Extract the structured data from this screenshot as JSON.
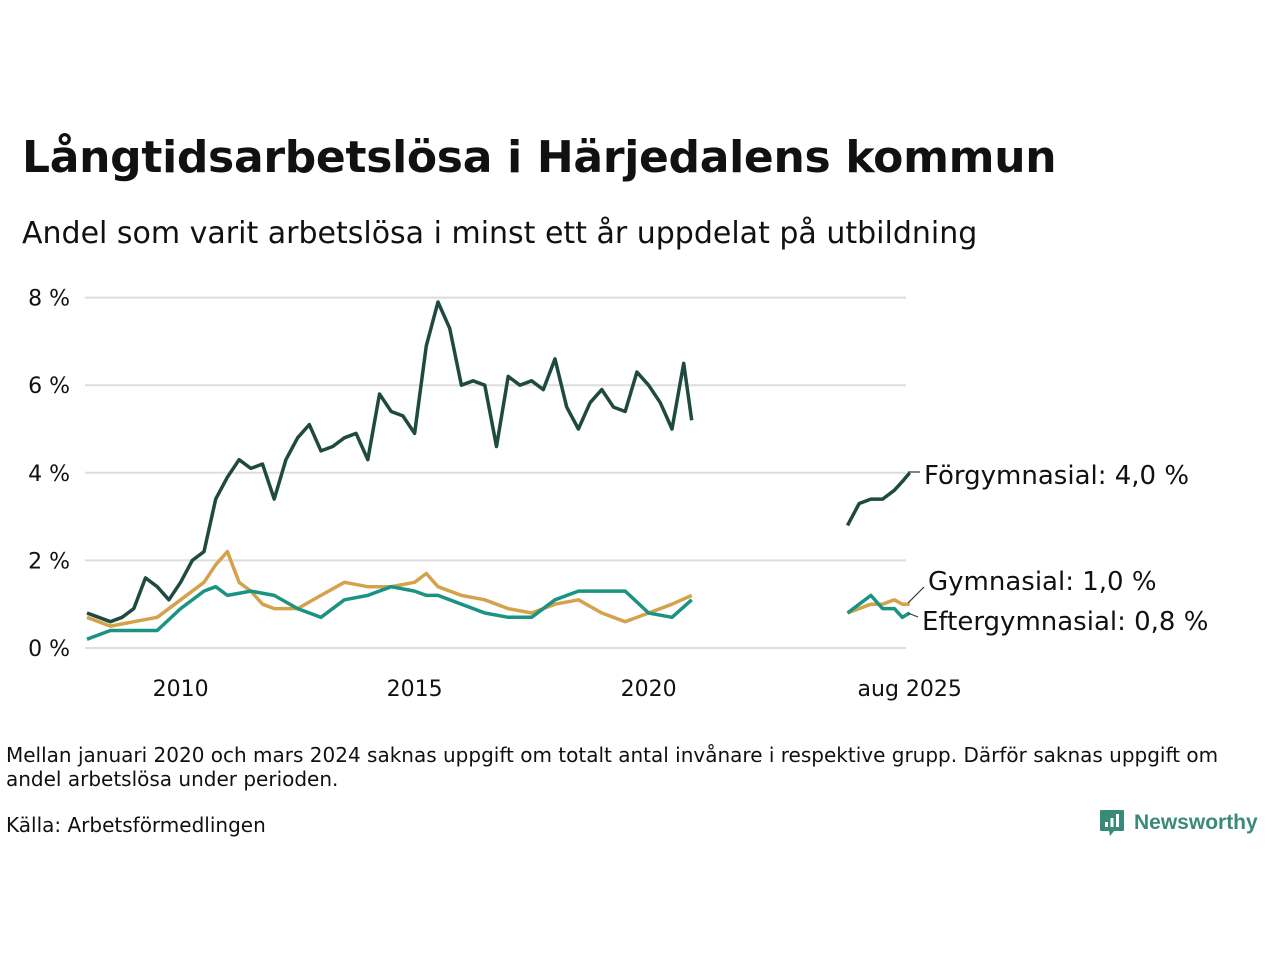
{
  "title": "Långtidsarbetslösa i Härjedalens kommun",
  "subtitle": "Andel som varit arbetslösa i minst ett år uppdelat på utbildning",
  "note": "Mellan januari 2020 och mars 2024 saknas uppgift om totalt antal invånare i respektive grupp. Därför saknas uppgift om andel arbetslösa under perioden.",
  "source": "Källa: Arbetsförmedlingen",
  "brand": "Newsworthy",
  "colors": {
    "forgymnasial": "#1f4a40",
    "gymnasial": "#d4a24c",
    "eftergymnasial": "#1a9480",
    "brand": "#3a8a78",
    "grid": "#dddddd"
  },
  "chart_data": {
    "type": "line",
    "x_ticks": [
      "2010",
      "2015",
      "2020",
      "aug 2025"
    ],
    "y_ticks": [
      "0 %",
      "2 %",
      "4 %",
      "6 %",
      "8 %"
    ],
    "ylim": [
      0,
      8
    ],
    "grid": "horizontal",
    "legend": "direct labels at right end of lines",
    "series": [
      {
        "name": "Förgymnasial",
        "end_label": "Förgymnasial: 4,0 %",
        "segments": [
          [
            [
              2008.0,
              0.8
            ],
            [
              2008.25,
              0.7
            ],
            [
              2008.5,
              0.6
            ],
            [
              2008.75,
              0.7
            ],
            [
              2009.0,
              0.9
            ],
            [
              2009.25,
              1.6
            ],
            [
              2009.5,
              1.4
            ],
            [
              2009.75,
              1.1
            ],
            [
              2010.0,
              1.5
            ],
            [
              2010.25,
              2.0
            ],
            [
              2010.5,
              2.2
            ],
            [
              2010.75,
              3.4
            ],
            [
              2011.0,
              3.9
            ],
            [
              2011.25,
              4.3
            ],
            [
              2011.5,
              4.1
            ],
            [
              2011.75,
              4.2
            ],
            [
              2012.0,
              3.4
            ],
            [
              2012.25,
              4.3
            ],
            [
              2012.5,
              4.8
            ],
            [
              2012.75,
              5.1
            ],
            [
              2013.0,
              4.5
            ],
            [
              2013.25,
              4.6
            ],
            [
              2013.5,
              4.8
            ],
            [
              2013.75,
              4.9
            ],
            [
              2014.0,
              4.3
            ],
            [
              2014.25,
              5.8
            ],
            [
              2014.5,
              5.4
            ],
            [
              2014.75,
              5.3
            ],
            [
              2015.0,
              4.9
            ],
            [
              2015.25,
              6.9
            ],
            [
              2015.5,
              7.9
            ],
            [
              2015.75,
              7.3
            ],
            [
              2016.0,
              6.0
            ],
            [
              2016.25,
              6.1
            ],
            [
              2016.5,
              6.0
            ],
            [
              2016.75,
              4.6
            ],
            [
              2017.0,
              6.2
            ],
            [
              2017.25,
              6.0
            ],
            [
              2017.5,
              6.1
            ],
            [
              2017.75,
              5.9
            ],
            [
              2018.0,
              6.6
            ],
            [
              2018.25,
              5.5
            ],
            [
              2018.5,
              5.0
            ],
            [
              2018.75,
              5.6
            ],
            [
              2019.0,
              5.9
            ],
            [
              2019.25,
              5.5
            ],
            [
              2019.5,
              5.4
            ],
            [
              2019.75,
              6.3
            ],
            [
              2020.0,
              6.0
            ],
            [
              2020.25,
              5.6
            ],
            [
              2020.5,
              5.0
            ],
            [
              2020.75,
              6.5
            ],
            [
              2020.92,
              5.2
            ]
          ],
          [
            [
              2024.25,
              2.8
            ],
            [
              2024.5,
              3.3
            ],
            [
              2024.75,
              3.4
            ],
            [
              2025.0,
              3.4
            ],
            [
              2025.25,
              3.6
            ],
            [
              2025.42,
              3.8
            ],
            [
              2025.58,
              4.0
            ]
          ]
        ]
      },
      {
        "name": "Gymnasial",
        "end_label": "Gymnasial: 1,0 %",
        "segments": [
          [
            [
              2008.0,
              0.7
            ],
            [
              2008.5,
              0.5
            ],
            [
              2009.0,
              0.6
            ],
            [
              2009.5,
              0.7
            ],
            [
              2010.0,
              1.1
            ],
            [
              2010.5,
              1.5
            ],
            [
              2010.75,
              1.9
            ],
            [
              2011.0,
              2.2
            ],
            [
              2011.25,
              1.5
            ],
            [
              2011.5,
              1.3
            ],
            [
              2011.75,
              1.0
            ],
            [
              2012.0,
              0.9
            ],
            [
              2012.5,
              0.9
            ],
            [
              2013.0,
              1.2
            ],
            [
              2013.5,
              1.5
            ],
            [
              2014.0,
              1.4
            ],
            [
              2014.5,
              1.4
            ],
            [
              2015.0,
              1.5
            ],
            [
              2015.25,
              1.7
            ],
            [
              2015.5,
              1.4
            ],
            [
              2016.0,
              1.2
            ],
            [
              2016.5,
              1.1
            ],
            [
              2017.0,
              0.9
            ],
            [
              2017.5,
              0.8
            ],
            [
              2018.0,
              1.0
            ],
            [
              2018.5,
              1.1
            ],
            [
              2019.0,
              0.8
            ],
            [
              2019.5,
              0.6
            ],
            [
              2020.0,
              0.8
            ],
            [
              2020.5,
              1.0
            ],
            [
              2020.92,
              1.2
            ]
          ],
          [
            [
              2024.25,
              0.8
            ],
            [
              2024.5,
              0.9
            ],
            [
              2024.75,
              1.0
            ],
            [
              2025.0,
              1.0
            ],
            [
              2025.25,
              1.1
            ],
            [
              2025.42,
              1.0
            ],
            [
              2025.58,
              1.0
            ]
          ]
        ]
      },
      {
        "name": "Eftergymnasial",
        "end_label": "Eftergymnasial: 0,8 %",
        "segments": [
          [
            [
              2008.0,
              0.2
            ],
            [
              2008.5,
              0.4
            ],
            [
              2009.0,
              0.4
            ],
            [
              2009.5,
              0.4
            ],
            [
              2010.0,
              0.9
            ],
            [
              2010.5,
              1.3
            ],
            [
              2010.75,
              1.4
            ],
            [
              2011.0,
              1.2
            ],
            [
              2011.5,
              1.3
            ],
            [
              2012.0,
              1.2
            ],
            [
              2012.5,
              0.9
            ],
            [
              2013.0,
              0.7
            ],
            [
              2013.5,
              1.1
            ],
            [
              2014.0,
              1.2
            ],
            [
              2014.5,
              1.4
            ],
            [
              2015.0,
              1.3
            ],
            [
              2015.25,
              1.2
            ],
            [
              2015.5,
              1.2
            ],
            [
              2016.0,
              1.0
            ],
            [
              2016.5,
              0.8
            ],
            [
              2017.0,
              0.7
            ],
            [
              2017.5,
              0.7
            ],
            [
              2018.0,
              1.1
            ],
            [
              2018.5,
              1.3
            ],
            [
              2019.0,
              1.3
            ],
            [
              2019.5,
              1.3
            ],
            [
              2020.0,
              0.8
            ],
            [
              2020.5,
              0.7
            ],
            [
              2020.92,
              1.1
            ]
          ],
          [
            [
              2024.25,
              0.8
            ],
            [
              2024.5,
              1.0
            ],
            [
              2024.75,
              1.2
            ],
            [
              2025.0,
              0.9
            ],
            [
              2025.25,
              0.9
            ],
            [
              2025.42,
              0.7
            ],
            [
              2025.58,
              0.8
            ]
          ]
        ]
      }
    ]
  }
}
